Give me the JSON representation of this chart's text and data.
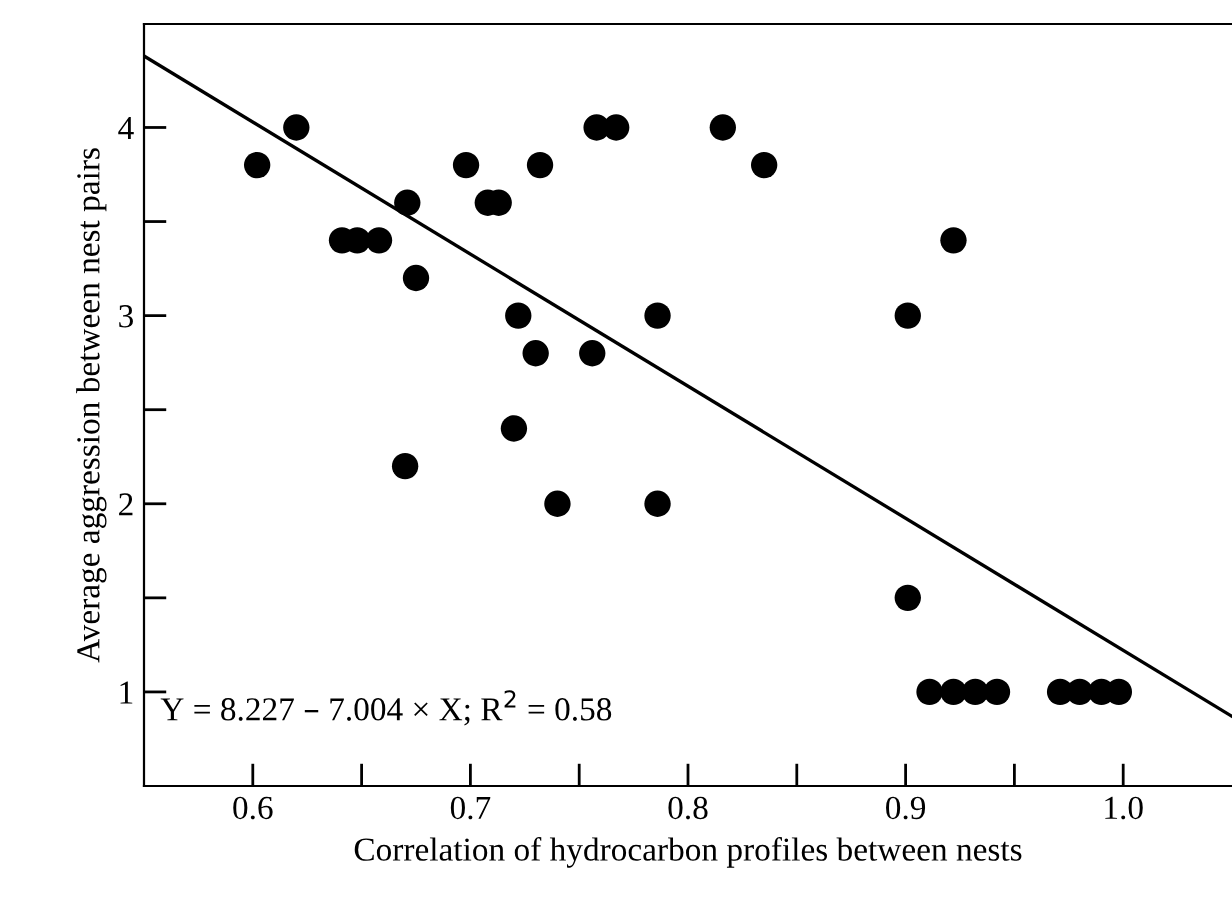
{
  "chart_data": {
    "type": "scatter",
    "xlabel": "Correlation of hydrocarbon profiles between nests",
    "ylabel": "Average aggression between nest pairs",
    "annotations": [
      "Y = 8.227 – 7.004 × X; R$^{2}$ = 0.58"
    ],
    "xlim": [
      0.55,
      1.05
    ],
    "ylim": [
      0.5,
      4.55
    ],
    "xticks": [
      0.6,
      {
        "value": 0.65,
        "label": null
      },
      0.7,
      {
        "value": 0.75,
        "label": null
      },
      0.8,
      {
        "value": 0.85,
        "label": null
      },
      0.9,
      {
        "value": 0.95,
        "label": null
      },
      {
        "value": 1.0,
        "label": "1.0"
      }
    ],
    "yticks": [
      1,
      {
        "value": 1.5,
        "label": null
      },
      2,
      {
        "value": 2.5,
        "label": null
      },
      3,
      {
        "value": 3.5,
        "label": null
      },
      4
    ],
    "grid": false,
    "series": [
      {
        "marker": "circle",
        "color": "#000000",
        "x": [
          0.602,
          0.62,
          0.641,
          0.648,
          0.658,
          0.671,
          0.675,
          0.67,
          0.698,
          0.708,
          0.713,
          0.732,
          0.722,
          0.73,
          0.72,
          0.74,
          0.756,
          0.758,
          0.767,
          0.816,
          0.835,
          0.786,
          0.786,
          0.901,
          0.922,
          0.901,
          0.911,
          0.922,
          0.932,
          0.942,
          0.971,
          0.98,
          0.99,
          0.998
        ],
        "values": [
          3.8,
          4.0,
          3.4,
          3.4,
          3.4,
          3.6,
          3.2,
          2.2,
          3.8,
          3.6,
          3.6,
          3.8,
          3.0,
          2.8,
          2.4,
          2.0,
          2.8,
          4.0,
          4.0,
          4.0,
          3.8,
          3.0,
          2.0,
          3.0,
          3.4,
          1.5,
          1.0,
          1.0,
          1.0,
          1.0,
          1.0,
          1.0,
          1.0,
          1.0
        ]
      },
      {
        "type": "line",
        "marker": "none",
        "color": "#000000",
        "x": [
          0.55,
          1.05
        ],
        "values": [
          4.38,
          0.87
        ]
      }
    ]
  }
}
